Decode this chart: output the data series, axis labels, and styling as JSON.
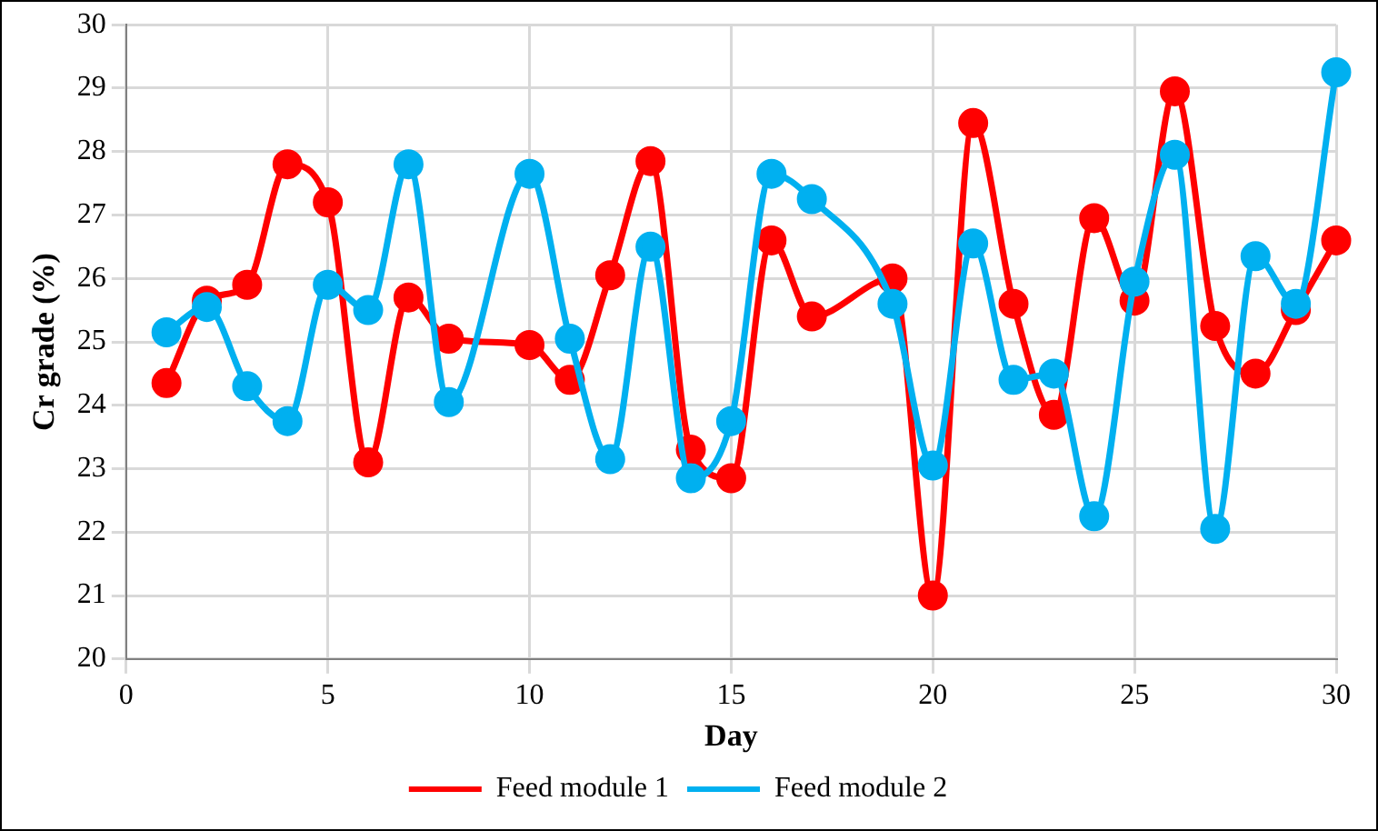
{
  "chart_data": {
    "type": "line",
    "xlabel": "Day",
    "ylabel": "Cr grade (%)",
    "x": [
      1,
      2,
      3,
      4,
      5,
      6,
      7,
      8,
      9,
      10,
      11,
      12,
      13,
      14,
      15,
      16,
      17,
      18,
      19,
      20,
      21,
      22,
      23,
      24,
      25,
      26,
      27,
      28,
      29,
      30
    ],
    "xlim": [
      0,
      30
    ],
    "xticks": [
      0,
      5,
      10,
      15,
      20,
      25,
      30
    ],
    "ylim": [
      20,
      30
    ],
    "yticks": [
      20,
      21,
      22,
      23,
      24,
      25,
      26,
      27,
      28,
      29,
      30
    ],
    "grid": true,
    "legend": "bottom",
    "marker": "circle",
    "line_style": "solid",
    "series": [
      {
        "name": "Feed module 1",
        "color": "#ff0000",
        "values": [
          24.35,
          25.65,
          25.9,
          27.8,
          27.2,
          23.1,
          25.7,
          25.05,
          null,
          24.95,
          24.4,
          26.05,
          27.85,
          23.3,
          22.85,
          26.6,
          25.4,
          null,
          26.0,
          21.0,
          28.45,
          25.6,
          23.85,
          26.95,
          25.65,
          28.95,
          25.25,
          24.5,
          25.5,
          26.6
        ]
      },
      {
        "name": "Feed module 2",
        "color": "#00b0f0",
        "values": [
          25.15,
          25.55,
          24.3,
          23.75,
          25.9,
          25.5,
          27.8,
          24.05,
          null,
          27.65,
          25.05,
          23.15,
          26.5,
          22.85,
          23.75,
          27.65,
          27.25,
          null,
          25.6,
          23.05,
          26.55,
          24.4,
          24.5,
          22.25,
          25.95,
          27.95,
          22.05,
          26.35,
          25.6,
          29.25
        ]
      }
    ]
  }
}
